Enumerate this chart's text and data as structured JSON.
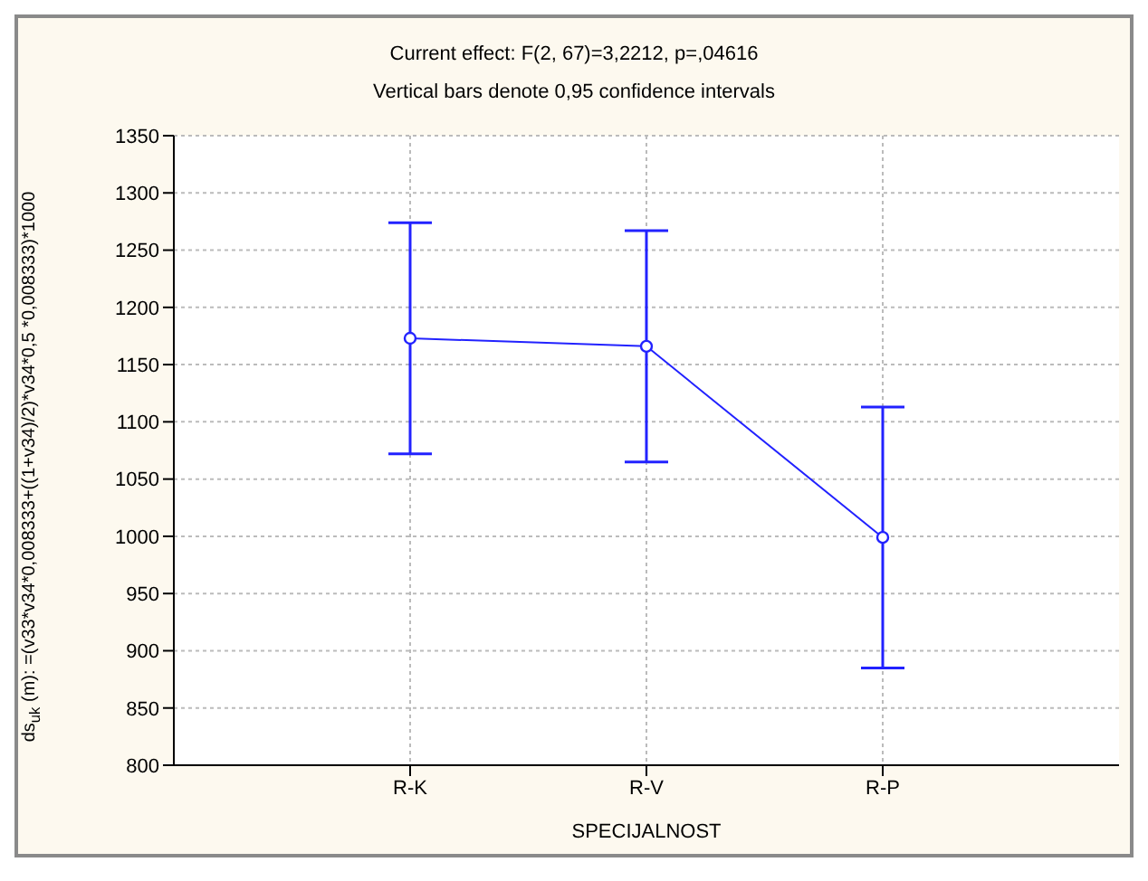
{
  "chart_data": {
    "type": "line",
    "title": "Current effect: F(2, 67)=3,2212, p=,04616",
    "subtitle": "Vertical bars denote 0,95 confidence intervals",
    "xlabel": "SPECIJALNOST",
    "ylabel": "ds$_{uk}$ (m): =(v33*v34*0,008333+((1+v34)/2)*v34*0,5 *0,008333)*1000",
    "categories": [
      "R-K",
      "R-V",
      "R-P"
    ],
    "series": [
      {
        "color": "#2222ff",
        "values": [
          1173,
          1166,
          999
        ],
        "errors": [
          101,
          101,
          114
        ]
      }
    ],
    "ylim": [
      800,
      1350
    ],
    "yticks": [
      800,
      850,
      900,
      950,
      1000,
      1050,
      1100,
      1150,
      1200,
      1250,
      1300,
      1350
    ],
    "grid": true,
    "marker": "circle",
    "line_style": "solid"
  }
}
